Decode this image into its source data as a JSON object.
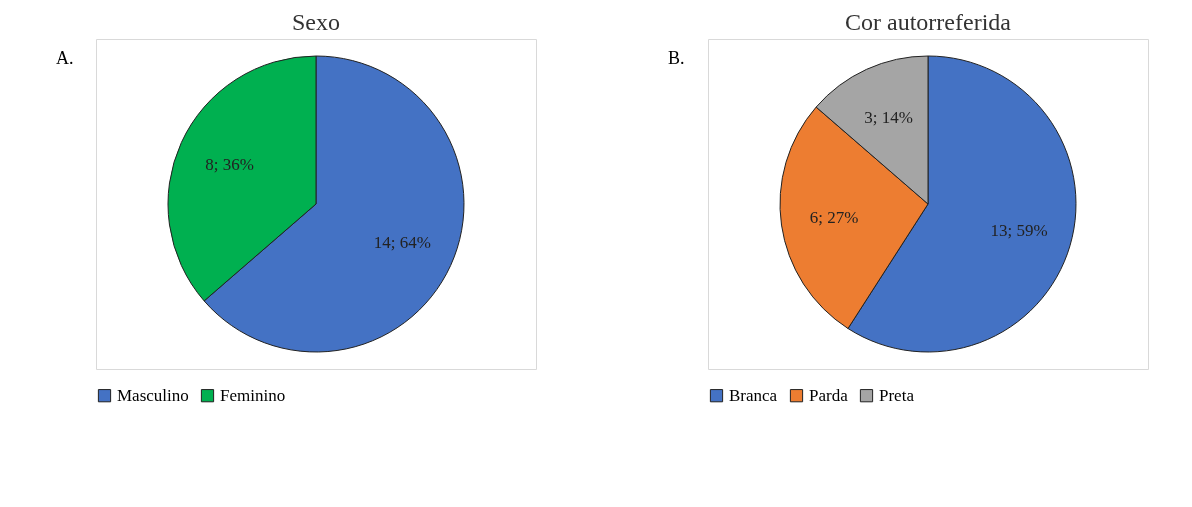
{
  "chart_data": [
    {
      "type": "pie",
      "title": "Sexo",
      "categories": [
        "Masculino",
        "Feminino"
      ],
      "values": [
        14,
        8
      ],
      "colors": [
        "#4472c4",
        "#00b050"
      ],
      "value_labels": [
        "14; 64%",
        "8; 36%"
      ],
      "legend": "bottom",
      "annotations": [
        "A."
      ]
    },
    {
      "type": "pie",
      "title": "Cor autorreferida",
      "categories": [
        "Branca",
        "Parda",
        "Preta"
      ],
      "values": [
        13,
        6,
        3
      ],
      "colors": [
        "#4472c4",
        "#ed7d31",
        "#a5a5a5"
      ],
      "value_labels": [
        "13; 59%",
        "6; 27%",
        "3; 14%"
      ],
      "legend": "bottom",
      "annotations": [
        "B."
      ]
    }
  ]
}
